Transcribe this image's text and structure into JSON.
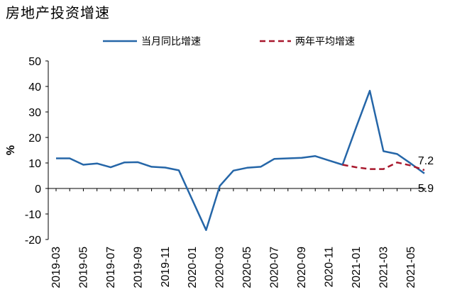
{
  "chart_data": {
    "type": "line",
    "title": "房地产投资增速",
    "ylabel": "%",
    "xlabel": "",
    "ylim": [
      -20,
      50
    ],
    "yticks": [
      -20,
      -10,
      0,
      10,
      20,
      30,
      40,
      50
    ],
    "legend_position": "top",
    "grid": false,
    "x": [
      "2019-03",
      "2019-04",
      "2019-05",
      "2019-06",
      "2019-07",
      "2019-08",
      "2019-09",
      "2019-10",
      "2019-11",
      "2019-12",
      "2020-01",
      "2020-02",
      "2020-03",
      "2020-04",
      "2020-05",
      "2020-06",
      "2020-07",
      "2020-08",
      "2020-09",
      "2020-10",
      "2020-11",
      "2020-12",
      "2021-01",
      "2021-02",
      "2021-03",
      "2021-04",
      "2021-05",
      "2021-06"
    ],
    "xtick_labels": [
      "2019-03",
      "2019-05",
      "2019-07",
      "2019-09",
      "2019-11",
      "2020-01",
      "2020-03",
      "2020-05",
      "2020-07",
      "2020-09",
      "2020-11",
      "2021-01",
      "2021-03",
      "2021-05"
    ],
    "series": [
      {
        "name": "当月同比增速",
        "color": "#2566A8",
        "style": "solid",
        "values": [
          11.8,
          11.8,
          9.3,
          9.8,
          8.3,
          10.2,
          10.3,
          8.5,
          8.2,
          7.1,
          null,
          -16.3,
          1.0,
          7.0,
          8.1,
          8.5,
          11.6,
          11.8,
          12.0,
          12.7,
          11.0,
          9.3,
          24.0,
          38.3,
          14.6,
          13.5,
          9.8,
          5.9
        ],
        "end_label": "5.9"
      },
      {
        "name": "两年平均增速",
        "color": "#A8172C",
        "style": "dashed",
        "values": [
          null,
          null,
          null,
          null,
          null,
          null,
          null,
          null,
          null,
          null,
          null,
          null,
          null,
          null,
          null,
          null,
          null,
          null,
          null,
          null,
          null,
          9.3,
          8.3,
          7.6,
          7.6,
          10.2,
          9.0,
          7.2
        ],
        "end_label": "7.2"
      }
    ]
  }
}
